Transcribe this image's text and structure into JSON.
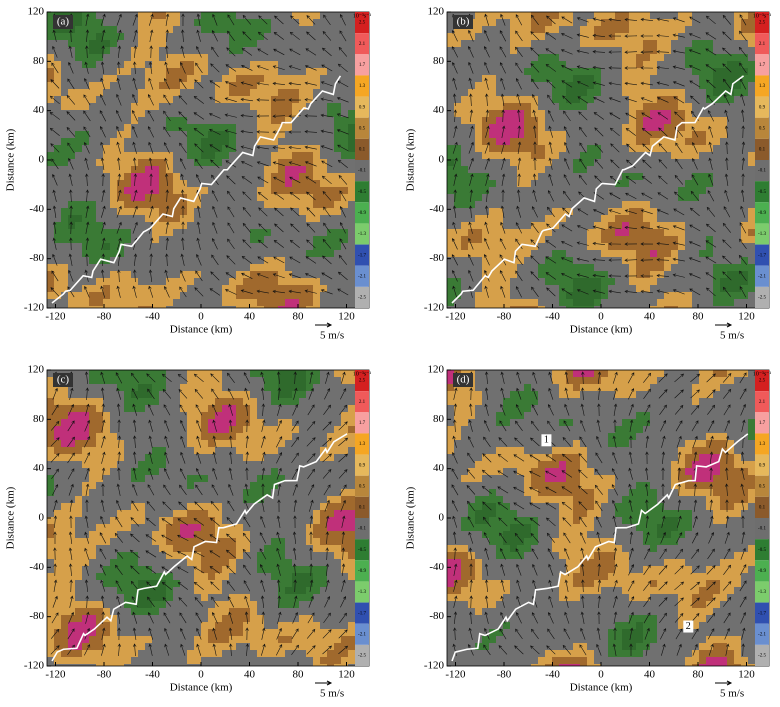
{
  "chart_data": [
    {
      "type": "field",
      "panel_label": "(a)",
      "xlabel": "Distance (km)",
      "ylabel": "Distance (km)",
      "vector_scale_label": "5 m/s",
      "xlim": [
        -127,
        127
      ],
      "ylim": [
        -120,
        120
      ],
      "xticks": [
        -120,
        -80,
        -40,
        0,
        40,
        80,
        120
      ],
      "yticks": [
        -120,
        -80,
        -40,
        0,
        40,
        80,
        120
      ]
    },
    {
      "type": "field",
      "panel_label": "(b)",
      "xlabel": "Distance (km)",
      "ylabel": "Distance (km)",
      "vector_scale_label": "5 m/s",
      "xlim": [
        -127,
        127
      ],
      "ylim": [
        -120,
        120
      ],
      "xticks": [
        -120,
        -80,
        -40,
        0,
        40,
        80,
        120
      ],
      "yticks": [
        -120,
        -80,
        -40,
        0,
        40,
        80,
        120
      ]
    },
    {
      "type": "field",
      "panel_label": "(c)",
      "xlabel": "Distance (km)",
      "ylabel": "Distance (km)",
      "vector_scale_label": "5 m/s",
      "xlim": [
        -127,
        127
      ],
      "ylim": [
        -120,
        120
      ],
      "xticks": [
        -120,
        -80,
        -40,
        0,
        40,
        80,
        120
      ],
      "yticks": [
        -120,
        -80,
        -40,
        0,
        40,
        80,
        120
      ]
    },
    {
      "type": "field",
      "panel_label": "(d)",
      "xlabel": "Distance (km)",
      "ylabel": "Distance (km)",
      "vector_scale_label": "5 m/s",
      "xlim": [
        -127,
        127
      ],
      "ylim": [
        -120,
        120
      ],
      "xticks": [
        -120,
        -80,
        -40,
        0,
        40,
        80,
        120
      ],
      "yticks": [
        -120,
        -80,
        -40,
        0,
        40,
        80,
        120
      ],
      "annotations": [
        "1",
        "2"
      ]
    }
  ],
  "colorbar": {
    "unit": "10⁻³s⁻¹",
    "ticks": [
      2.5,
      2.1,
      1.7,
      1.3,
      0.9,
      0.5,
      0.1,
      -0.1,
      -0.5,
      -0.9,
      -1.3,
      -1.7,
      -2.1,
      -2.5
    ],
    "colors": [
      "#d42020",
      "#f05a5a",
      "#f7a0a0",
      "#f5a623",
      "#e6b85c",
      "#b8863b",
      "#8b5a2b",
      "#6e6e6e",
      "#2e7d32",
      "#4caf50",
      "#7ccc6c",
      "#3050b0",
      "#6a8fd0",
      "#b0b0b0"
    ]
  }
}
